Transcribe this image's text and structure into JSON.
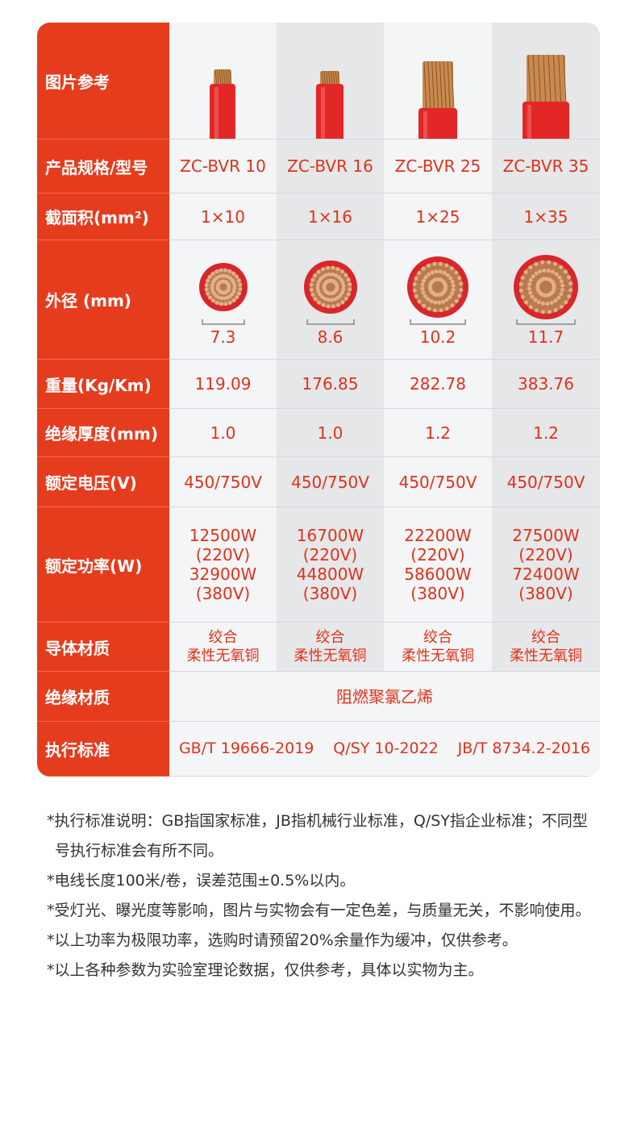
{
  "table": {
    "row_headers": [
      "图片参考",
      "产品规格/型号",
      "截面积(mm²)",
      "外径 (mm)",
      "重量(Kg/Km)",
      "绝缘厚度(mm)",
      "额定电压(V)",
      "额定功率(W)",
      "导体材质",
      "绝缘材质",
      "执行标准"
    ],
    "models": [
      "ZC-BVR 10",
      "ZC-BVR 16",
      "ZC-BVR 25",
      "ZC-BVR 35"
    ],
    "cross_sections": [
      "1×10",
      "1×16",
      "1×25",
      "1×35"
    ],
    "diameters": [
      "7.3",
      "8.6",
      "10.2",
      "11.7"
    ],
    "weights": [
      "119.09",
      "176.85",
      "282.78",
      "383.76"
    ],
    "insulation_thickness": [
      "1.0",
      "1.0",
      "1.2",
      "1.2"
    ],
    "rated_voltage": [
      "450/750V",
      "450/750V",
      "450/750V",
      "450/750V"
    ],
    "rated_power": [
      [
        "12500W",
        "(220V)",
        "32900W",
        "(380V)"
      ],
      [
        "16700W",
        "(220V)",
        "44800W",
        "(380V)"
      ],
      [
        "22200W",
        "(220V)",
        "58600W",
        "(380V)"
      ],
      [
        "27500W",
        "(220V)",
        "72400W",
        "(380V)"
      ]
    ],
    "conductor": [
      [
        "绞合",
        "柔性无氧铜"
      ],
      [
        "绞合",
        "柔性无氧铜"
      ],
      [
        "绞合",
        "柔性无氧铜"
      ],
      [
        "绞合",
        "柔性无氧铜"
      ]
    ],
    "insulation_material": "阻燃聚氯乙烯",
    "standards": [
      "GB/T 19666-2019",
      "Q/SY 10-2022",
      "JB/T 8734.2-2016"
    ]
  },
  "notes": [
    "*执行标准说明：GB指国家标准，JB指机械行业标准，Q/SY指企业标准；不同型号执行标准会有所不同。",
    "*电线长度100米/卷，误差范围±0.5%以内。",
    "*受灯光、曝光度等影响，图片与实物会有一定色差，与质量无关，不影响使用。",
    "*以上功率为极限功率，选购时请预留20%余量作为缓冲，仅供参考。",
    "*以上各种参数为实验室理论数据，仅供参考，具体以实物为主。"
  ]
}
